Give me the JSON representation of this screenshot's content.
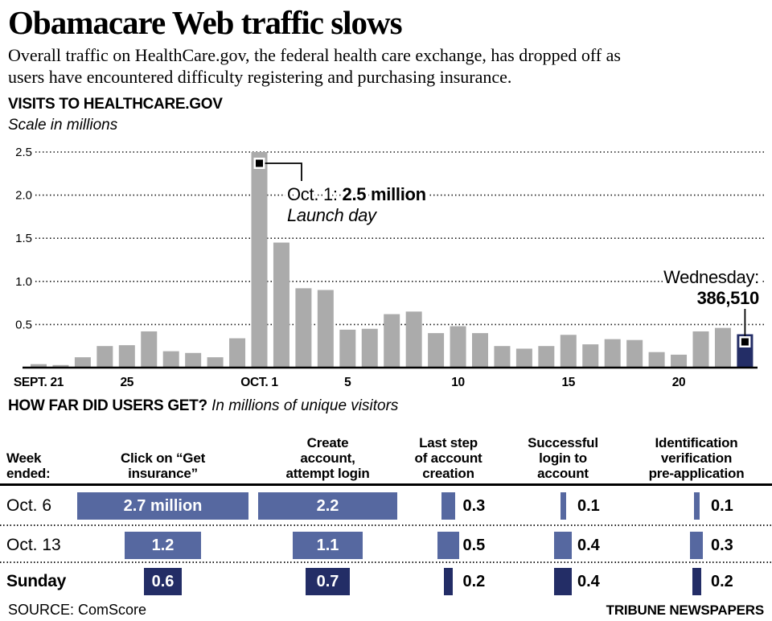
{
  "header": {
    "title": "Obamacare Web traffic slows",
    "intro": "Overall traffic on HealthCare.gov, the federal health care exchange, has dropped off as\nusers have encountered difficulty registering and purchasing insurance."
  },
  "visits": {
    "heading": "VISITS TO HEALTHCARE.GOV",
    "scale_note": "Scale in millions"
  },
  "funnel": {
    "heading": "HOW FAR DID USERS GET?",
    "subheading": "In millions of unique visitors"
  },
  "footer": {
    "source": "SOURCE: ComScore",
    "credit": "TRIBUNE NEWSPAPERS"
  },
  "colors": {
    "bar_gray": "#ababab",
    "navy": "#232d66",
    "table_blue": "#5668a0"
  },
  "chart_data": [
    {
      "type": "bar",
      "title": "VISITS TO HEALTHCARE.GOV",
      "ylabel": "Scale in millions",
      "ylim": [
        0,
        2.5
      ],
      "grid": true,
      "gridlines": [
        0.5,
        1.0,
        1.5,
        2.0,
        2.5
      ],
      "ytick_labels": [
        "0.5",
        "1.0",
        "1.5",
        "2.0",
        "2.5"
      ],
      "x_range": "Sept. 21 - Oct. 23",
      "values": [
        0.04,
        0.03,
        0.12,
        0.25,
        0.26,
        0.42,
        0.19,
        0.17,
        0.12,
        0.34,
        2.5,
        1.45,
        0.92,
        0.9,
        0.44,
        0.45,
        0.62,
        0.65,
        0.4,
        0.48,
        0.4,
        0.25,
        0.22,
        0.25,
        0.38,
        0.27,
        0.33,
        0.32,
        0.18,
        0.15,
        0.42,
        0.46,
        0.387
      ],
      "xticks": [
        {
          "index": 0,
          "label": "SEPT. 21"
        },
        {
          "index": 4,
          "label": "25"
        },
        {
          "index": 10,
          "label": "OCT. 1"
        },
        {
          "index": 14,
          "label": "5"
        },
        {
          "index": 19,
          "label": "10"
        },
        {
          "index": 24,
          "label": "15"
        },
        {
          "index": 29,
          "label": "20"
        }
      ],
      "highlight_index": 32,
      "annotations": [
        {
          "bar_index": 10,
          "text_prefix": "Oct. 1: ",
          "text_bold": "2.5 million",
          "text_sub": "Launch day"
        },
        {
          "bar_index": 32,
          "line1": "Wednesday:",
          "line2": "386,510"
        }
      ]
    },
    {
      "type": "table",
      "heading": "HOW FAR DID USERS GET?",
      "unit_note": "In millions of unique visitors",
      "row_header": "Week\nended:",
      "columns": [
        "Click on “Get\ninsurance”",
        "Create\naccount,\nattempt login",
        "Last step\nof account\ncreation",
        "Successful\nlogin to\naccount",
        "Identification\nverification\npre-application"
      ],
      "rows": [
        {
          "label": "Oct. 6",
          "values": [
            2.7,
            2.2,
            0.3,
            0.1,
            0.1
          ],
          "displays": [
            "2.7 million",
            "2.2",
            "0.3",
            "0.1",
            "0.1"
          ],
          "emphasis": false
        },
        {
          "label": "Oct. 13",
          "values": [
            1.2,
            1.1,
            0.5,
            0.4,
            0.3
          ],
          "displays": [
            "1.2",
            "1.1",
            "0.5",
            "0.4",
            "0.3"
          ],
          "emphasis": false
        },
        {
          "label": "Sunday",
          "values": [
            0.6,
            0.7,
            0.2,
            0.4,
            0.2
          ],
          "displays": [
            "0.6",
            "0.7",
            "0.2",
            "0.4",
            "0.2"
          ],
          "emphasis": true
        }
      ]
    }
  ]
}
